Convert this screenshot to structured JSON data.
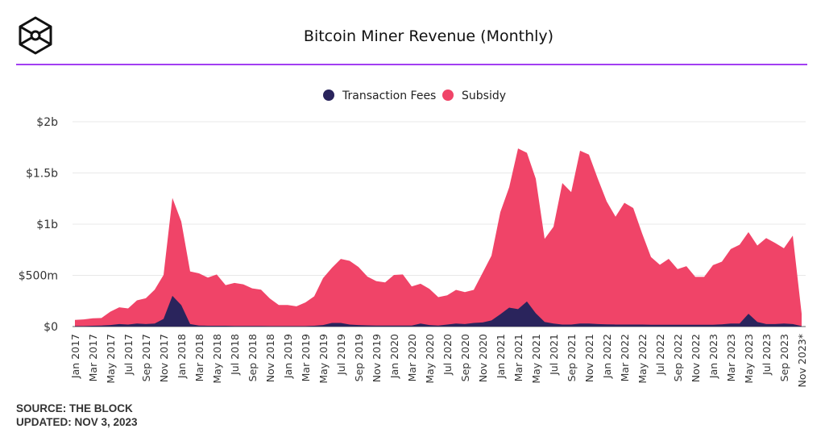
{
  "header": {
    "title": "Bitcoin Miner Revenue (Monthly)"
  },
  "footer": {
    "source": "SOURCE: THE BLOCK",
    "updated": "UPDATED: NOV 3, 2023"
  },
  "chart_data": {
    "type": "area",
    "stacked": true,
    "title": "Bitcoin Miner Revenue (Monthly)",
    "xlabel": "",
    "ylabel": "",
    "ylim": [
      0,
      2000
    ],
    "y_unit": "$M",
    "y_ticks": [
      0,
      500,
      1000,
      1500,
      2000
    ],
    "y_tick_labels": [
      "$0",
      "$500m",
      "$1b",
      "$1.5b",
      "$2b"
    ],
    "grid": true,
    "legend": "top",
    "x_tick_labels": [
      "Jan 2017",
      "Mar 2017",
      "May 2017",
      "Jul 2017",
      "Sep 2017",
      "Nov 2017",
      "Jan 2018",
      "Mar 2018",
      "May 2018",
      "Jul 2018",
      "Sep 2018",
      "Nov 2018",
      "Jan 2019",
      "Mar 2019",
      "May 2019",
      "Jul 2019",
      "Sep 2019",
      "Nov 2019",
      "Jan 2020",
      "Mar 2020",
      "May 2020",
      "Jul 2020",
      "Sep 2020",
      "Nov 2020",
      "Jan 2021",
      "Mar 2021",
      "May 2021",
      "Jul 2021",
      "Sep 2021",
      "Nov 2021",
      "Jan 2022",
      "Mar 2022",
      "May 2022",
      "Jul 2022",
      "Sep 2022",
      "Nov 2022",
      "Jan 2023",
      "Mar 2023",
      "May 2023",
      "Jul 2023",
      "Sep 2023",
      "Nov 2023*"
    ],
    "series": [
      {
        "name": "Transaction Fees",
        "color": "#2a245c",
        "values": [
          5,
          5,
          8,
          10,
          15,
          25,
          20,
          30,
          25,
          30,
          75,
          300,
          210,
          25,
          10,
          8,
          8,
          8,
          6,
          6,
          6,
          6,
          5,
          5,
          5,
          5,
          5,
          8,
          15,
          35,
          35,
          20,
          15,
          12,
          10,
          10,
          10,
          10,
          10,
          30,
          15,
          10,
          20,
          30,
          25,
          35,
          40,
          60,
          120,
          185,
          170,
          245,
          130,
          45,
          30,
          20,
          20,
          30,
          30,
          25,
          22,
          20,
          20,
          20,
          20,
          18,
          18,
          18,
          18,
          18,
          18,
          18,
          18,
          22,
          30,
          30,
          125,
          45,
          25,
          25,
          30,
          25,
          5
        ]
      },
      {
        "name": "Subsidy",
        "color": "#f04468",
        "values": [
          60,
          65,
          73,
          74,
          131,
          163,
          157,
          226,
          252,
          330,
          429,
          956,
          816,
          513,
          510,
          470,
          501,
          397,
          420,
          406,
          367,
          354,
          269,
          206,
          206,
          193,
          230,
          287,
          458,
          539,
          625,
          622,
          567,
          476,
          434,
          421,
          494,
          499,
          382,
          388,
          353,
          277,
          285,
          328,
          312,
          323,
          485,
          632,
          997,
          1175,
          1569,
          1452,
          1314,
          811,
          944,
          1382,
          1293,
          1688,
          1649,
          1419,
          1200,
          1053,
          1189,
          1137,
          889,
          661,
          585,
          643,
          543,
          572,
          467,
          467,
          582,
          612,
          727,
          769,
          797,
          746,
          839,
          792,
          735,
          863,
          120
        ]
      }
    ]
  }
}
